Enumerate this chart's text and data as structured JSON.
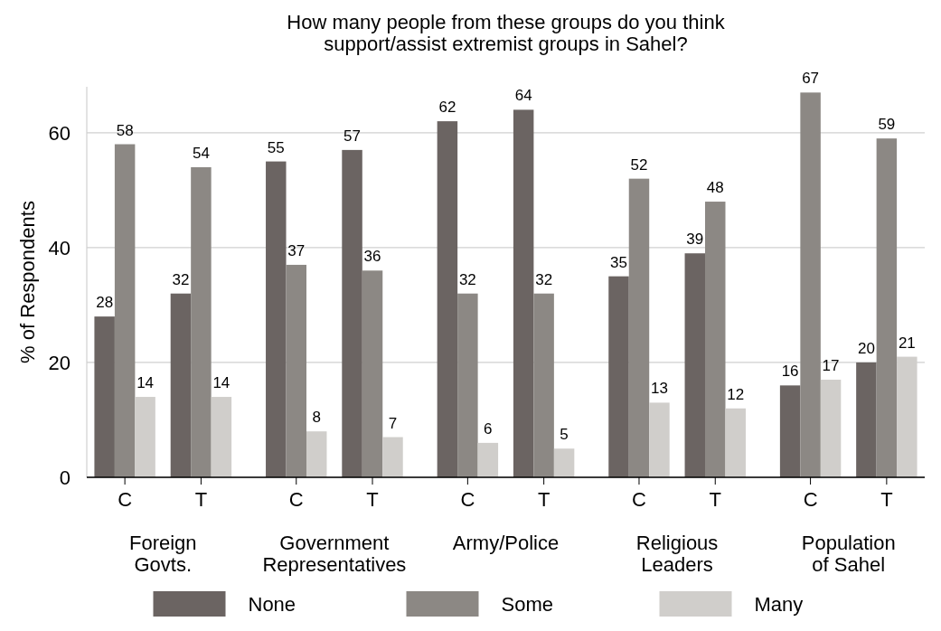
{
  "chart_data": {
    "type": "bar",
    "title": "How many people from these groups do you think support/assist extremist groups in Sahel?",
    "ylabel": "% of Respondents",
    "categories": [
      "C",
      "T",
      "C",
      "T",
      "C",
      "T",
      "C",
      "T",
      "C",
      "T"
    ],
    "annotations": [
      "Foreign Govts.",
      "Government Representatives",
      "Army/Police",
      "Religious Leaders",
      "Population of Sahel"
    ],
    "series": [
      {
        "name": "None",
        "color": "#6b6462",
        "values": [
          28,
          32,
          55,
          57,
          62,
          64,
          35,
          39,
          16,
          20
        ]
      },
      {
        "name": "Some",
        "color": "#8c8884",
        "values": [
          58,
          54,
          37,
          36,
          32,
          32,
          52,
          48,
          67,
          59
        ]
      },
      {
        "name": "Many",
        "color": "#d0cecb",
        "values": [
          14,
          14,
          8,
          7,
          6,
          5,
          13,
          12,
          17,
          21
        ]
      }
    ],
    "ylim": [
      0,
      68
    ],
    "yticks": [
      0,
      20,
      40,
      60
    ],
    "grid": "y",
    "legend": "bottom",
    "data_labels": true
  }
}
